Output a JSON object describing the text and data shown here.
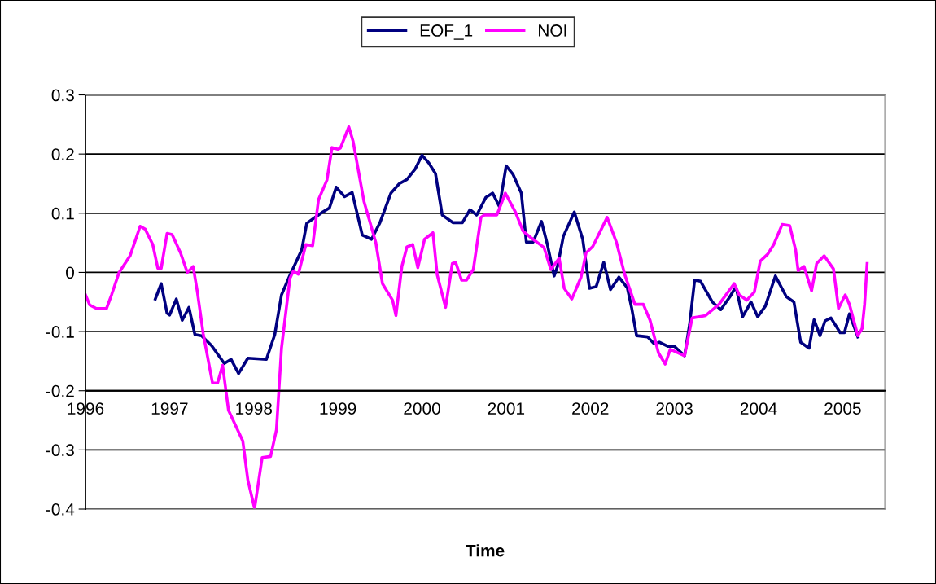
{
  "chart_data": {
    "type": "line",
    "xlabel": "Time",
    "legend": "top",
    "grid": "y",
    "xlim": [
      1996,
      2005.5
    ],
    "xticks": [
      1996,
      1997,
      1998,
      1999,
      2000,
      2001,
      2002,
      2003,
      2004,
      2005
    ],
    "ylim": [
      -0.4,
      0.3
    ],
    "yticks": [
      -0.4,
      -0.3,
      -0.2,
      -0.1,
      0,
      0.1,
      0.2,
      0.3
    ],
    "series": [
      {
        "name": "EOF_1",
        "color": "#000080",
        "x": [
          1996.83,
          1996.9,
          1996.97,
          1997.0,
          1997.08,
          1997.15,
          1997.23,
          1997.3,
          1997.38,
          1997.5,
          1997.65,
          1997.73,
          1997.82,
          1997.93,
          1998.15,
          1998.25,
          1998.33,
          1998.43,
          1998.57,
          1998.63,
          1998.7,
          1998.82,
          1998.9,
          1998.98,
          1999.08,
          1999.17,
          1999.29,
          1999.4,
          1999.5,
          1999.63,
          1999.73,
          1999.82,
          1999.92,
          2000.0,
          2000.08,
          2000.16,
          2000.24,
          2000.37,
          2000.48,
          2000.57,
          2000.65,
          2000.76,
          2000.84,
          2000.92,
          2001.0,
          2001.08,
          2001.18,
          2001.24,
          2001.32,
          2001.42,
          2001.49,
          2001.57,
          2001.61,
          2001.68,
          2001.81,
          2001.91,
          2001.99,
          2002.07,
          2002.16,
          2002.24,
          2002.34,
          2002.44,
          2002.49,
          2002.55,
          2002.68,
          2002.76,
          2002.82,
          2002.92,
          2003.0,
          2003.12,
          2003.18,
          2003.24,
          2003.31,
          2003.45,
          2003.55,
          2003.66,
          2003.73,
          2003.81,
          2003.91,
          2003.99,
          2004.08,
          2004.2,
          2004.33,
          2004.42,
          2004.5,
          2004.6,
          2004.66,
          2004.73,
          2004.79,
          2004.86,
          2004.97,
          2005.02,
          2005.08,
          2005.18
        ],
        "values": [
          -0.045,
          -0.019,
          -0.069,
          -0.072,
          -0.045,
          -0.081,
          -0.059,
          -0.105,
          -0.107,
          -0.124,
          -0.154,
          -0.147,
          -0.171,
          -0.145,
          -0.147,
          -0.105,
          -0.038,
          -0.005,
          0.038,
          0.083,
          0.09,
          0.102,
          0.109,
          0.144,
          0.128,
          0.135,
          0.063,
          0.056,
          0.084,
          0.134,
          0.15,
          0.157,
          0.175,
          0.198,
          0.185,
          0.167,
          0.097,
          0.084,
          0.084,
          0.106,
          0.097,
          0.127,
          0.134,
          0.111,
          0.18,
          0.166,
          0.134,
          0.051,
          0.051,
          0.086,
          0.047,
          -0.006,
          0.01,
          0.061,
          0.102,
          0.056,
          -0.027,
          -0.024,
          0.017,
          -0.029,
          -0.008,
          -0.026,
          -0.059,
          -0.107,
          -0.109,
          -0.121,
          -0.118,
          -0.125,
          -0.125,
          -0.141,
          -0.088,
          -0.013,
          -0.015,
          -0.05,
          -0.063,
          -0.041,
          -0.024,
          -0.075,
          -0.05,
          -0.075,
          -0.057,
          -0.006,
          -0.041,
          -0.05,
          -0.118,
          -0.128,
          -0.08,
          -0.107,
          -0.082,
          -0.077,
          -0.102,
          -0.102,
          -0.07,
          -0.109
        ]
      },
      {
        "name": "NOI",
        "color": "#ff00ff",
        "x": [
          1996.0,
          1996.05,
          1996.13,
          1996.25,
          1996.31,
          1996.4,
          1996.53,
          1996.65,
          1996.71,
          1996.8,
          1996.86,
          1996.9,
          1996.97,
          1997.03,
          1997.13,
          1997.21,
          1997.28,
          1997.33,
          1997.4,
          1997.51,
          1997.57,
          1997.63,
          1997.7,
          1997.87,
          1997.93,
          1998.01,
          1998.1,
          1998.2,
          1998.27,
          1998.33,
          1998.43,
          1998.47,
          1998.53,
          1998.62,
          1998.7,
          1998.77,
          1998.87,
          1998.93,
          1999.0,
          1999.03,
          1999.13,
          1999.18,
          1999.31,
          1999.45,
          1999.53,
          1999.65,
          1999.69,
          1999.76,
          1999.82,
          1999.89,
          1999.95,
          2000.03,
          2000.13,
          2000.18,
          2000.28,
          2000.36,
          2000.4,
          2000.47,
          2000.53,
          2000.61,
          2000.7,
          2000.74,
          2000.89,
          2000.99,
          2001.11,
          2001.2,
          2001.3,
          2001.45,
          2001.53,
          2001.63,
          2001.69,
          2001.78,
          2001.89,
          2001.95,
          2002.03,
          2002.2,
          2002.31,
          2002.41,
          2002.53,
          2002.63,
          2002.71,
          2002.81,
          2002.89,
          2002.95,
          2003.12,
          2003.21,
          2003.37,
          2003.53,
          2003.71,
          2003.77,
          2003.86,
          2003.95,
          2004.02,
          2004.11,
          2004.18,
          2004.28,
          2004.37,
          2004.44,
          2004.47,
          2004.54,
          2004.63,
          2004.69,
          2004.78,
          2004.89,
          2004.95,
          2005.03,
          2005.08,
          2005.18,
          2005.23,
          2005.26,
          2005.29
        ],
        "values": [
          -0.038,
          -0.055,
          -0.061,
          -0.061,
          -0.038,
          0.0,
          0.028,
          0.078,
          0.073,
          0.047,
          0.007,
          0.007,
          0.066,
          0.064,
          0.033,
          0.0,
          0.01,
          -0.033,
          -0.104,
          -0.187,
          -0.187,
          -0.157,
          -0.233,
          -0.285,
          -0.351,
          -0.399,
          -0.313,
          -0.311,
          -0.266,
          -0.128,
          -0.01,
          0.002,
          -0.003,
          0.047,
          0.045,
          0.123,
          0.156,
          0.211,
          0.208,
          0.21,
          0.246,
          0.222,
          0.12,
          0.051,
          -0.019,
          -0.047,
          -0.073,
          0.01,
          0.043,
          0.047,
          0.008,
          0.056,
          0.067,
          -0.004,
          -0.059,
          0.015,
          0.017,
          -0.013,
          -0.013,
          0.005,
          0.093,
          0.097,
          0.097,
          0.134,
          0.102,
          0.07,
          0.058,
          0.042,
          0.005,
          0.024,
          -0.027,
          -0.045,
          -0.008,
          0.033,
          0.044,
          0.093,
          0.051,
          -0.004,
          -0.054,
          -0.054,
          -0.081,
          -0.136,
          -0.155,
          -0.13,
          -0.141,
          -0.077,
          -0.073,
          -0.054,
          -0.019,
          -0.038,
          -0.047,
          -0.033,
          0.019,
          0.031,
          0.047,
          0.081,
          0.079,
          0.038,
          0.003,
          0.01,
          -0.031,
          0.015,
          0.028,
          0.006,
          -0.061,
          -0.038,
          -0.054,
          -0.107,
          -0.095,
          -0.054,
          0.015
        ]
      }
    ]
  }
}
